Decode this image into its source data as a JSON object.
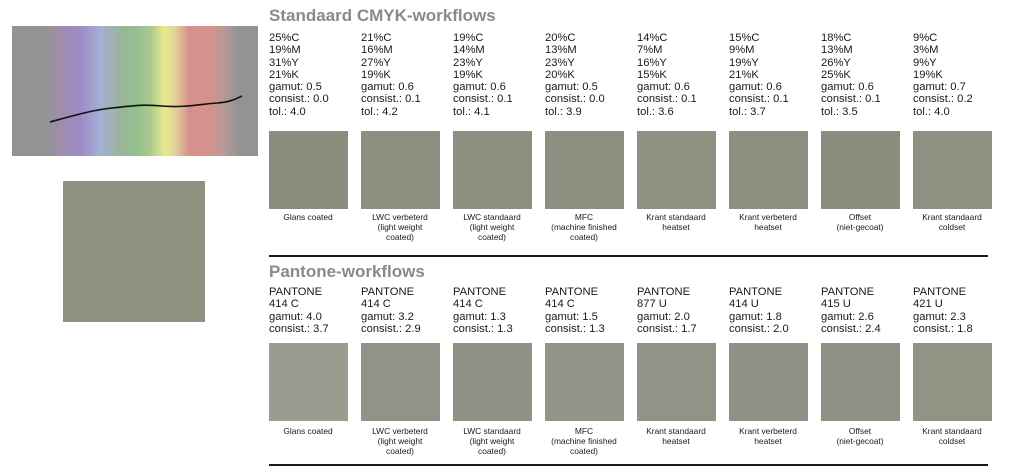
{
  "preview": {
    "spectrum_alt": "",
    "target_color": "#8f917e"
  },
  "cmyk": {
    "title": "Standaard CMYK-workflows",
    "items": [
      {
        "lines": [
          "25%C",
          "19%M",
          "31%Y",
          "21%K",
          "gamut: 0.5",
          "consist.: 0.0",
          "tol.: 4.0"
        ],
        "color": "#8b8d7e",
        "caption": "Glans coated"
      },
      {
        "lines": [
          "21%C",
          "16%M",
          "27%Y",
          "19%K",
          "gamut: 0.6",
          "consist.: 0.1",
          "tol.: 4.2"
        ],
        "color": "#8c8f7f",
        "caption": "LWC verbeterd\n(light weight\ncoated)"
      },
      {
        "lines": [
          "19%C",
          "14%M",
          "23%Y",
          "19%K",
          "gamut: 0.6",
          "consist.: 0.1",
          "tol.: 4.1"
        ],
        "color": "#8d8f80",
        "caption": "LWC standaard\n(light weight\ncoated)"
      },
      {
        "lines": [
          "20%C",
          "13%M",
          "23%Y",
          "20%K",
          "gamut: 0.5",
          "consist.: 0.0",
          "tol.: 3.9"
        ],
        "color": "#8c8e7f",
        "caption": "MFC\n(machine finished\ncoated)"
      },
      {
        "lines": [
          "14%C",
          "7%M",
          "16%Y",
          "15%K",
          "gamut: 0.6",
          "consist.: 0.1",
          "tol.: 3.6"
        ],
        "color": "#8e9081",
        "caption": "Krant standaard\nheatset"
      },
      {
        "lines": [
          "15%C",
          "9%M",
          "19%Y",
          "21%K",
          "gamut: 0.6",
          "consist.: 0.1",
          "tol.: 3.7"
        ],
        "color": "#8c8e7f",
        "caption": "Krant verbeterd\nheatset"
      },
      {
        "lines": [
          "18%C",
          "13%M",
          "26%Y",
          "25%K",
          "gamut: 0.6",
          "consist.: 0.1",
          "tol.: 3.5"
        ],
        "color": "#8b8d7e",
        "caption": "Offset\n(niet-gecoat)"
      },
      {
        "lines": [
          "9%C",
          "3%M",
          "9%Y",
          "19%K",
          "gamut: 0.7",
          "consist.: 0.2",
          "tol.: 4.0"
        ],
        "color": "#8e9082",
        "caption": "Krant standaard\ncoldset"
      }
    ]
  },
  "pantone": {
    "title": "Pantone-workflows",
    "items": [
      {
        "lines": [
          "PANTONE",
          "414 C",
          "gamut: 4.0",
          "consist.: 3.7"
        ],
        "color": "#999c8e",
        "caption": "Glans coated"
      },
      {
        "lines": [
          "PANTONE",
          "414 C",
          "gamut: 3.2",
          "consist.: 2.9"
        ],
        "color": "#8f9487",
        "caption": "LWC verbeterd\n(light weight\ncoated)"
      },
      {
        "lines": [
          "PANTONE",
          "414 C",
          "gamut: 1.3",
          "consist.: 1.3"
        ],
        "color": "#8f9386",
        "caption": "LWC standaard\n(light weight\ncoated)"
      },
      {
        "lines": [
          "PANTONE",
          "414 C",
          "gamut: 1.5",
          "consist.: 1.3"
        ],
        "color": "#919588",
        "caption": "MFC\n(machine finished\ncoated)"
      },
      {
        "lines": [
          "PANTONE",
          "877 U",
          "gamut: 2.0",
          "consist.: 1.7"
        ],
        "color": "#919387",
        "caption": "Krant standaard\nheatset"
      },
      {
        "lines": [
          "PANTONE",
          "414 U",
          "gamut: 1.8",
          "consist.: 2.0"
        ],
        "color": "#8e9285",
        "caption": "Krant verbeterd\nheatset"
      },
      {
        "lines": [
          "PANTONE",
          "415 U",
          "gamut: 2.6",
          "consist.: 2.4"
        ],
        "color": "#8d9184",
        "caption": "Offset\n(niet-gecoat)"
      },
      {
        "lines": [
          "PANTONE",
          "421 U",
          "gamut: 2.3",
          "consist.: 1.8"
        ],
        "color": "#919385",
        "caption": "Krant standaard\ncoldset"
      }
    ]
  }
}
